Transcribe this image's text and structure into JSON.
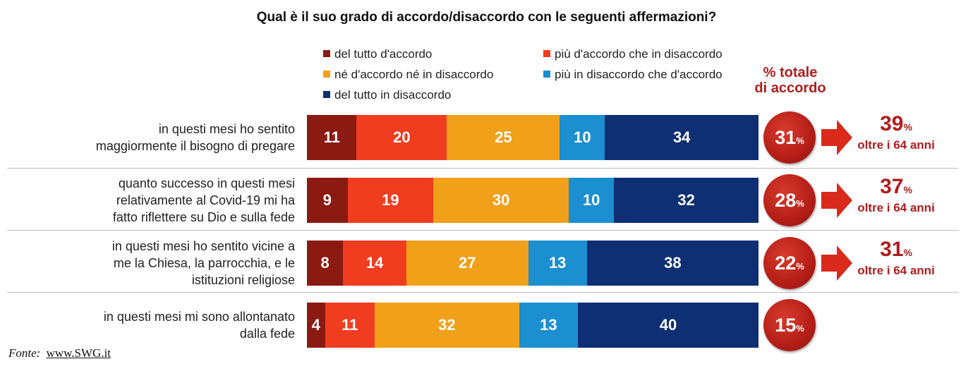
{
  "chart_data": {
    "type": "bar",
    "orientation": "horizontal",
    "stacked": true,
    "title": "Qual è il suo grado di accordo/disaccordo con le seguenti affermazioni?",
    "categories": [
      "in questi mesi ho sentito maggiormente il bisogno di pregare",
      "quanto successo in questi mesi relativamente al Covid-19 mi ha fatto riflettere su Dio e sulla fede",
      "in questi mesi ho sentito vicine a me la Chiesa, la parrocchia, e le istituzioni religiose",
      "in questi mesi mi sono allontanato dalla fede"
    ],
    "category_lines": [
      [
        "in questi mesi ho sentito",
        "maggiormente il bisogno di pregare"
      ],
      [
        "quanto successo in questi mesi",
        "relativamente al Covid-19 mi ha",
        "fatto riflettere su Dio e sulla fede"
      ],
      [
        "in questi mesi ho sentito vicine a",
        "me la Chiesa, la parrocchia, e le",
        "istituzioni religiose"
      ],
      [
        "in questi mesi mi sono allontanato",
        "dalla fede"
      ]
    ],
    "series": [
      {
        "name": "del tutto d'accordo",
        "color": "#8a1a12",
        "values": [
          11,
          9,
          8,
          4
        ]
      },
      {
        "name": "più d'accordo che in disaccordo",
        "color": "#f03c1f",
        "values": [
          20,
          19,
          14,
          11
        ]
      },
      {
        "name": "né d'accordo né in disaccordo",
        "color": "#f0a019",
        "values": [
          25,
          30,
          27,
          32
        ]
      },
      {
        "name": "più in disaccordo che d'accordo",
        "color": "#1b8fd0",
        "values": [
          10,
          10,
          13,
          13
        ]
      },
      {
        "name": "del tutto in disaccordo",
        "color": "#0e2f74",
        "values": [
          34,
          32,
          38,
          40
        ]
      }
    ],
    "legend_position": "top",
    "total_agreement": {
      "header_lines": [
        "% totale",
        "di accordo"
      ],
      "values": [
        31,
        28,
        22,
        15
      ],
      "suffix": "%"
    },
    "over_64": {
      "values": [
        39,
        37,
        31,
        null
      ],
      "suffix": "%",
      "label": "oltre i 64 anni"
    }
  },
  "source": {
    "label": "Fonte:",
    "link": "www.SWG.it"
  }
}
